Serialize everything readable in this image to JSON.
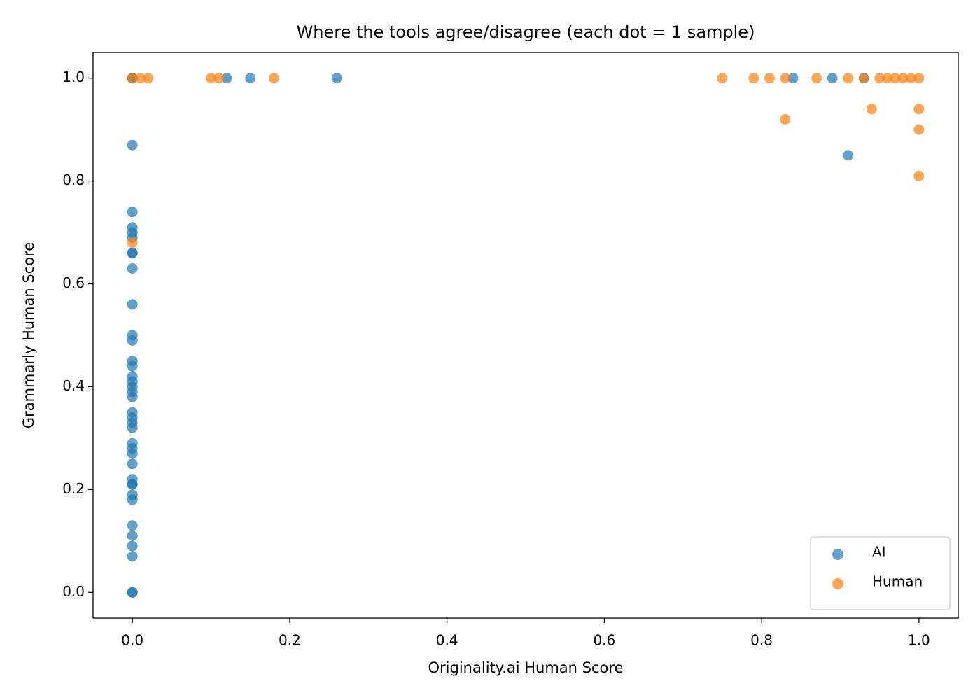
{
  "chart_data": {
    "type": "scatter",
    "title": "Where the tools agree/disagree (each dot = 1 sample)",
    "x_label": "Originality.ai Human Score",
    "y_label": "Grammarly Human Score",
    "xlim": [
      -0.05,
      1.05
    ],
    "ylim": [
      -0.05,
      1.05
    ],
    "xticks": [
      {
        "value": 0,
        "label": "0.0"
      },
      0.2,
      0.4,
      0.6,
      0.8,
      {
        "value": 1,
        "label": "1.0"
      }
    ],
    "yticks": [
      {
        "value": 0,
        "label": "0.0"
      },
      0.2,
      0.4,
      0.6,
      0.8,
      {
        "value": 1,
        "label": "1.0"
      }
    ],
    "legend": "lower right",
    "alpha": 0.7,
    "series": [
      {
        "name": "AI",
        "color": "#1f77b4",
        "x": [
          0,
          0,
          0,
          0,
          0,
          0,
          0,
          0,
          0,
          0,
          0,
          0,
          0,
          0,
          0,
          0,
          0,
          0,
          0,
          0,
          0,
          0,
          0,
          0,
          0,
          0,
          0,
          0,
          0,
          0,
          0,
          0,
          0,
          0,
          0,
          0,
          0,
          0,
          0,
          0.12,
          0.15,
          0.26,
          0.84,
          0.89,
          0.93,
          0.91
        ],
        "values": [
          1,
          1,
          0.87,
          0.74,
          0.71,
          0.7,
          0.69,
          0.66,
          0.66,
          0.63,
          0.56,
          0.5,
          0.49,
          0.45,
          0.44,
          0.42,
          0.41,
          0.4,
          0.39,
          0.38,
          0.35,
          0.34,
          0.33,
          0.32,
          0.29,
          0.28,
          0.27,
          0.25,
          0.22,
          0.21,
          0.21,
          0.19,
          0.18,
          0.13,
          0.11,
          0.09,
          0.07,
          0,
          0,
          1,
          1,
          1,
          1,
          1,
          1,
          0.85
        ]
      },
      {
        "name": "Human",
        "color": "#ff7f0e",
        "x": [
          0,
          0.01,
          0.02,
          0.1,
          0.11,
          0.18,
          0.75,
          0.79,
          0.81,
          0.83,
          0.87,
          0.91,
          0.93,
          0.95,
          0.96,
          0.97,
          0.98,
          0.99,
          1,
          0.83,
          0.94,
          1,
          1,
          1,
          0
        ],
        "values": [
          1,
          1,
          1,
          1,
          1,
          1,
          1,
          1,
          1,
          1,
          1,
          1,
          1,
          1,
          1,
          1,
          1,
          1,
          1,
          0.92,
          0.94,
          0.94,
          0.9,
          0.81,
          0.68
        ]
      }
    ]
  }
}
